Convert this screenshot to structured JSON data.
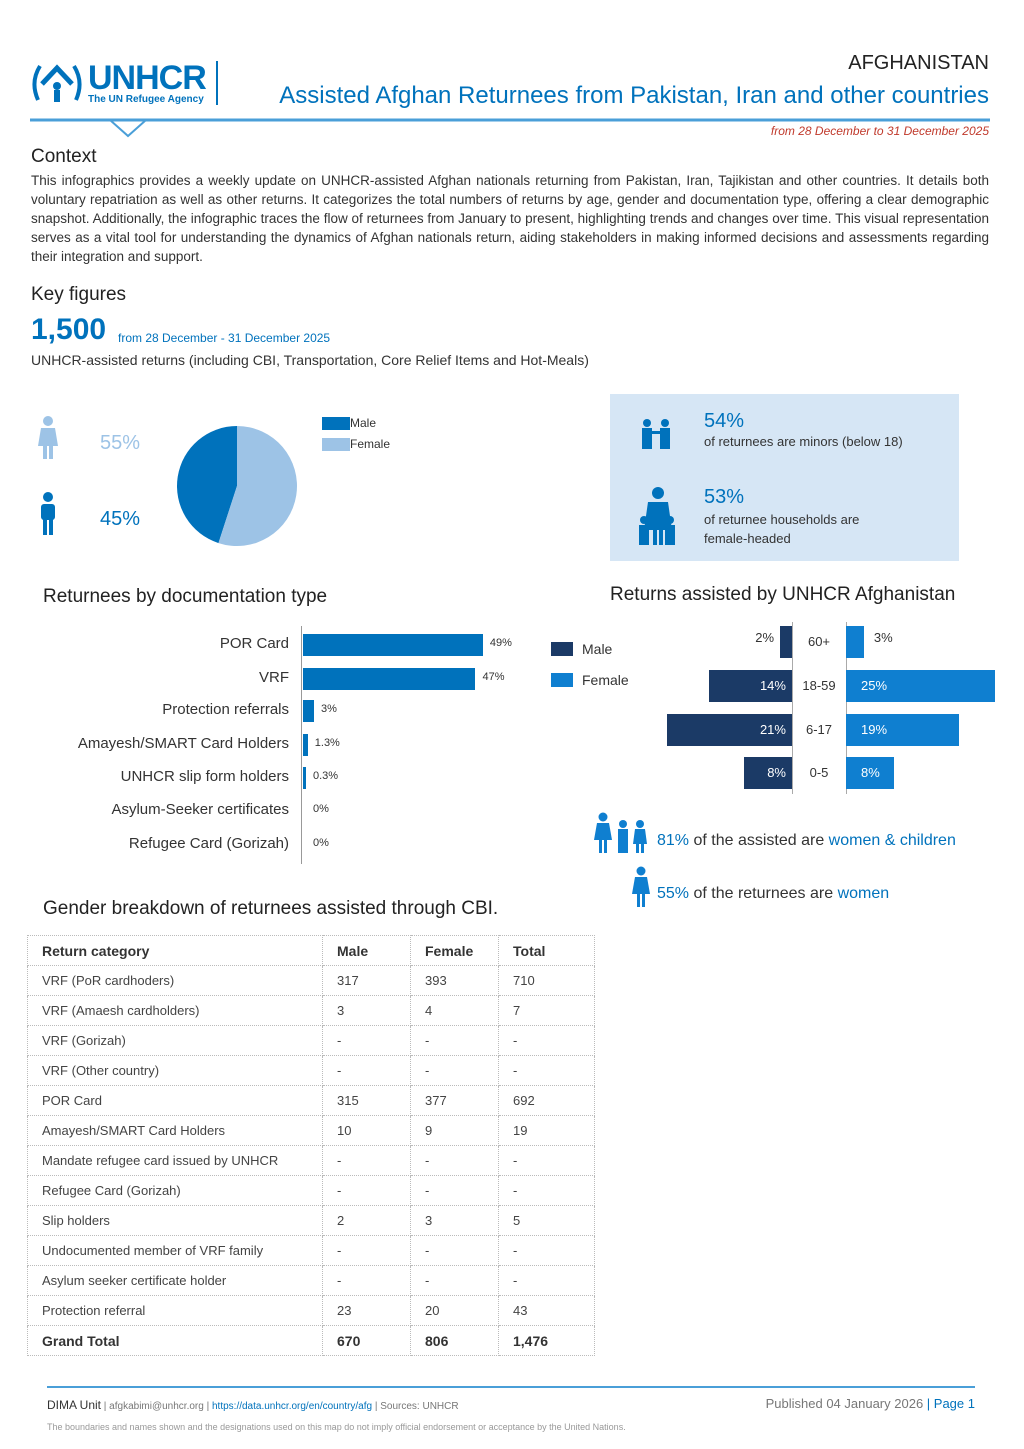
{
  "header": {
    "logo_name": "UNHCR",
    "logo_tagline": "The UN Refugee Agency",
    "country": "AFGHANISTAN",
    "title": "Assisted Afghan Returnees from Pakistan, Iran and other countries",
    "date_range": "from 28 December  to 31 December 2025"
  },
  "context": {
    "heading": "Context",
    "body": "This infographics provides a weekly update on UNHCR-assisted Afghan nationals returning from Pakistan, Iran, Tajikistan and other countries. It details both voluntary repatriation as well as other returns. It categorizes the total numbers of returns by age, gender and documentation type, offering a clear demographic snapshot. Additionally, the infographic traces the flow of returnees from January to present, highlighting trends and changes over time. This visual representation serves as a vital tool for understanding the dynamics of Afghan nationals return, aiding stakeholders in making informed decisions and assessments regarding their integration and support."
  },
  "key_figures": {
    "heading": "Key figures",
    "total": "1,500",
    "period": "from 28 December - 31 December 2025",
    "description": "UNHCR-assisted returns (including CBI, Transportation, Core Relief Items and Hot-Meals)",
    "female_pct": "55%",
    "male_pct": "45%",
    "legend_male": "Male",
    "legend_female": "Female",
    "minors_pct": "54%",
    "minors_text": "of returnees are minors (below 18)",
    "female_headed_pct": "53%",
    "female_headed_text": "of returnee households are female-headed"
  },
  "colors": {
    "accent": "#0072bc",
    "light": "#9dc3e6",
    "dark": "#1b3a66",
    "panel": "#d6e6f5"
  },
  "chart_data": [
    {
      "type": "pie",
      "title": "",
      "categories": [
        "Male",
        "Female"
      ],
      "values": [
        45,
        55
      ]
    },
    {
      "type": "bar",
      "orientation": "horizontal",
      "title": "Returnees by documentation type",
      "categories": [
        "POR Card",
        "VRF",
        "Protection referrals",
        "Amayesh/SMART Card Holders",
        "UNHCR slip form holders",
        "Asylum-Seeker certificates",
        "Refugee Card (Gorizah)"
      ],
      "values": [
        49,
        47,
        3,
        1.3,
        0.3,
        0,
        0
      ],
      "labels": [
        "49%",
        "47%",
        "3%",
        "1.3%",
        "0.3%",
        "0%",
        "0%"
      ]
    },
    {
      "type": "bar",
      "orientation": "pyramid",
      "title": "Returns assisted by UNHCR Afghanistan",
      "categories": [
        "60+",
        "18-59",
        "6-17",
        "0-5"
      ],
      "series": [
        {
          "name": "Male",
          "values": [
            2,
            14,
            21,
            8
          ]
        },
        {
          "name": "Female",
          "values": [
            3,
            25,
            19,
            8
          ]
        }
      ]
    }
  ],
  "stats": {
    "women_children_pct": "81%",
    "women_children_mid": " of the assisted are ",
    "women_children_tail": "women & children",
    "women_pct": "55%",
    "women_mid": " of the returnees are ",
    "women_tail": "women"
  },
  "table": {
    "title": "Gender breakdown of returnees assisted through CBI.",
    "headers": [
      "Return category",
      "Male",
      "Female",
      "Total"
    ],
    "rows": [
      [
        "VRF (PoR cardhoders)",
        "317",
        "393",
        "710"
      ],
      [
        "VRF (Amaesh cardholders)",
        "3",
        "4",
        "7"
      ],
      [
        "VRF (Gorizah)",
        "-",
        "-",
        "-"
      ],
      [
        "VRF (Other country)",
        "-",
        "-",
        "-"
      ],
      [
        "POR Card",
        "315",
        "377",
        "692"
      ],
      [
        "Amayesh/SMART Card Holders",
        "10",
        "9",
        "19"
      ],
      [
        "Mandate refugee card issued by UNHCR",
        "-",
        "-",
        "-"
      ],
      [
        "Refugee Card (Gorizah)",
        "-",
        "-",
        "-"
      ],
      [
        "Slip holders",
        "2",
        "3",
        "5"
      ],
      [
        "Undocumented member of VRF family",
        "-",
        "-",
        "-"
      ],
      [
        "Asylum seeker certificate holder",
        "-",
        "-",
        "-"
      ],
      [
        "Protection referral",
        "23",
        "20",
        "43"
      ],
      [
        "Grand Total",
        "670",
        "806",
        "1,476"
      ]
    ]
  },
  "footer": {
    "unit": "DIMA Unit",
    "email": "| afgkabimi@unhcr.org |",
    "url": "https://data.unhcr.org/en/country/afg",
    "sources": "| Sources: UNHCR",
    "published": "Published 04 January 2026",
    "page": "| Page 1",
    "disclaimer": "The boundaries and names shown and the designations used on this map do not imply official endorsement or acceptance by the United Nations."
  }
}
